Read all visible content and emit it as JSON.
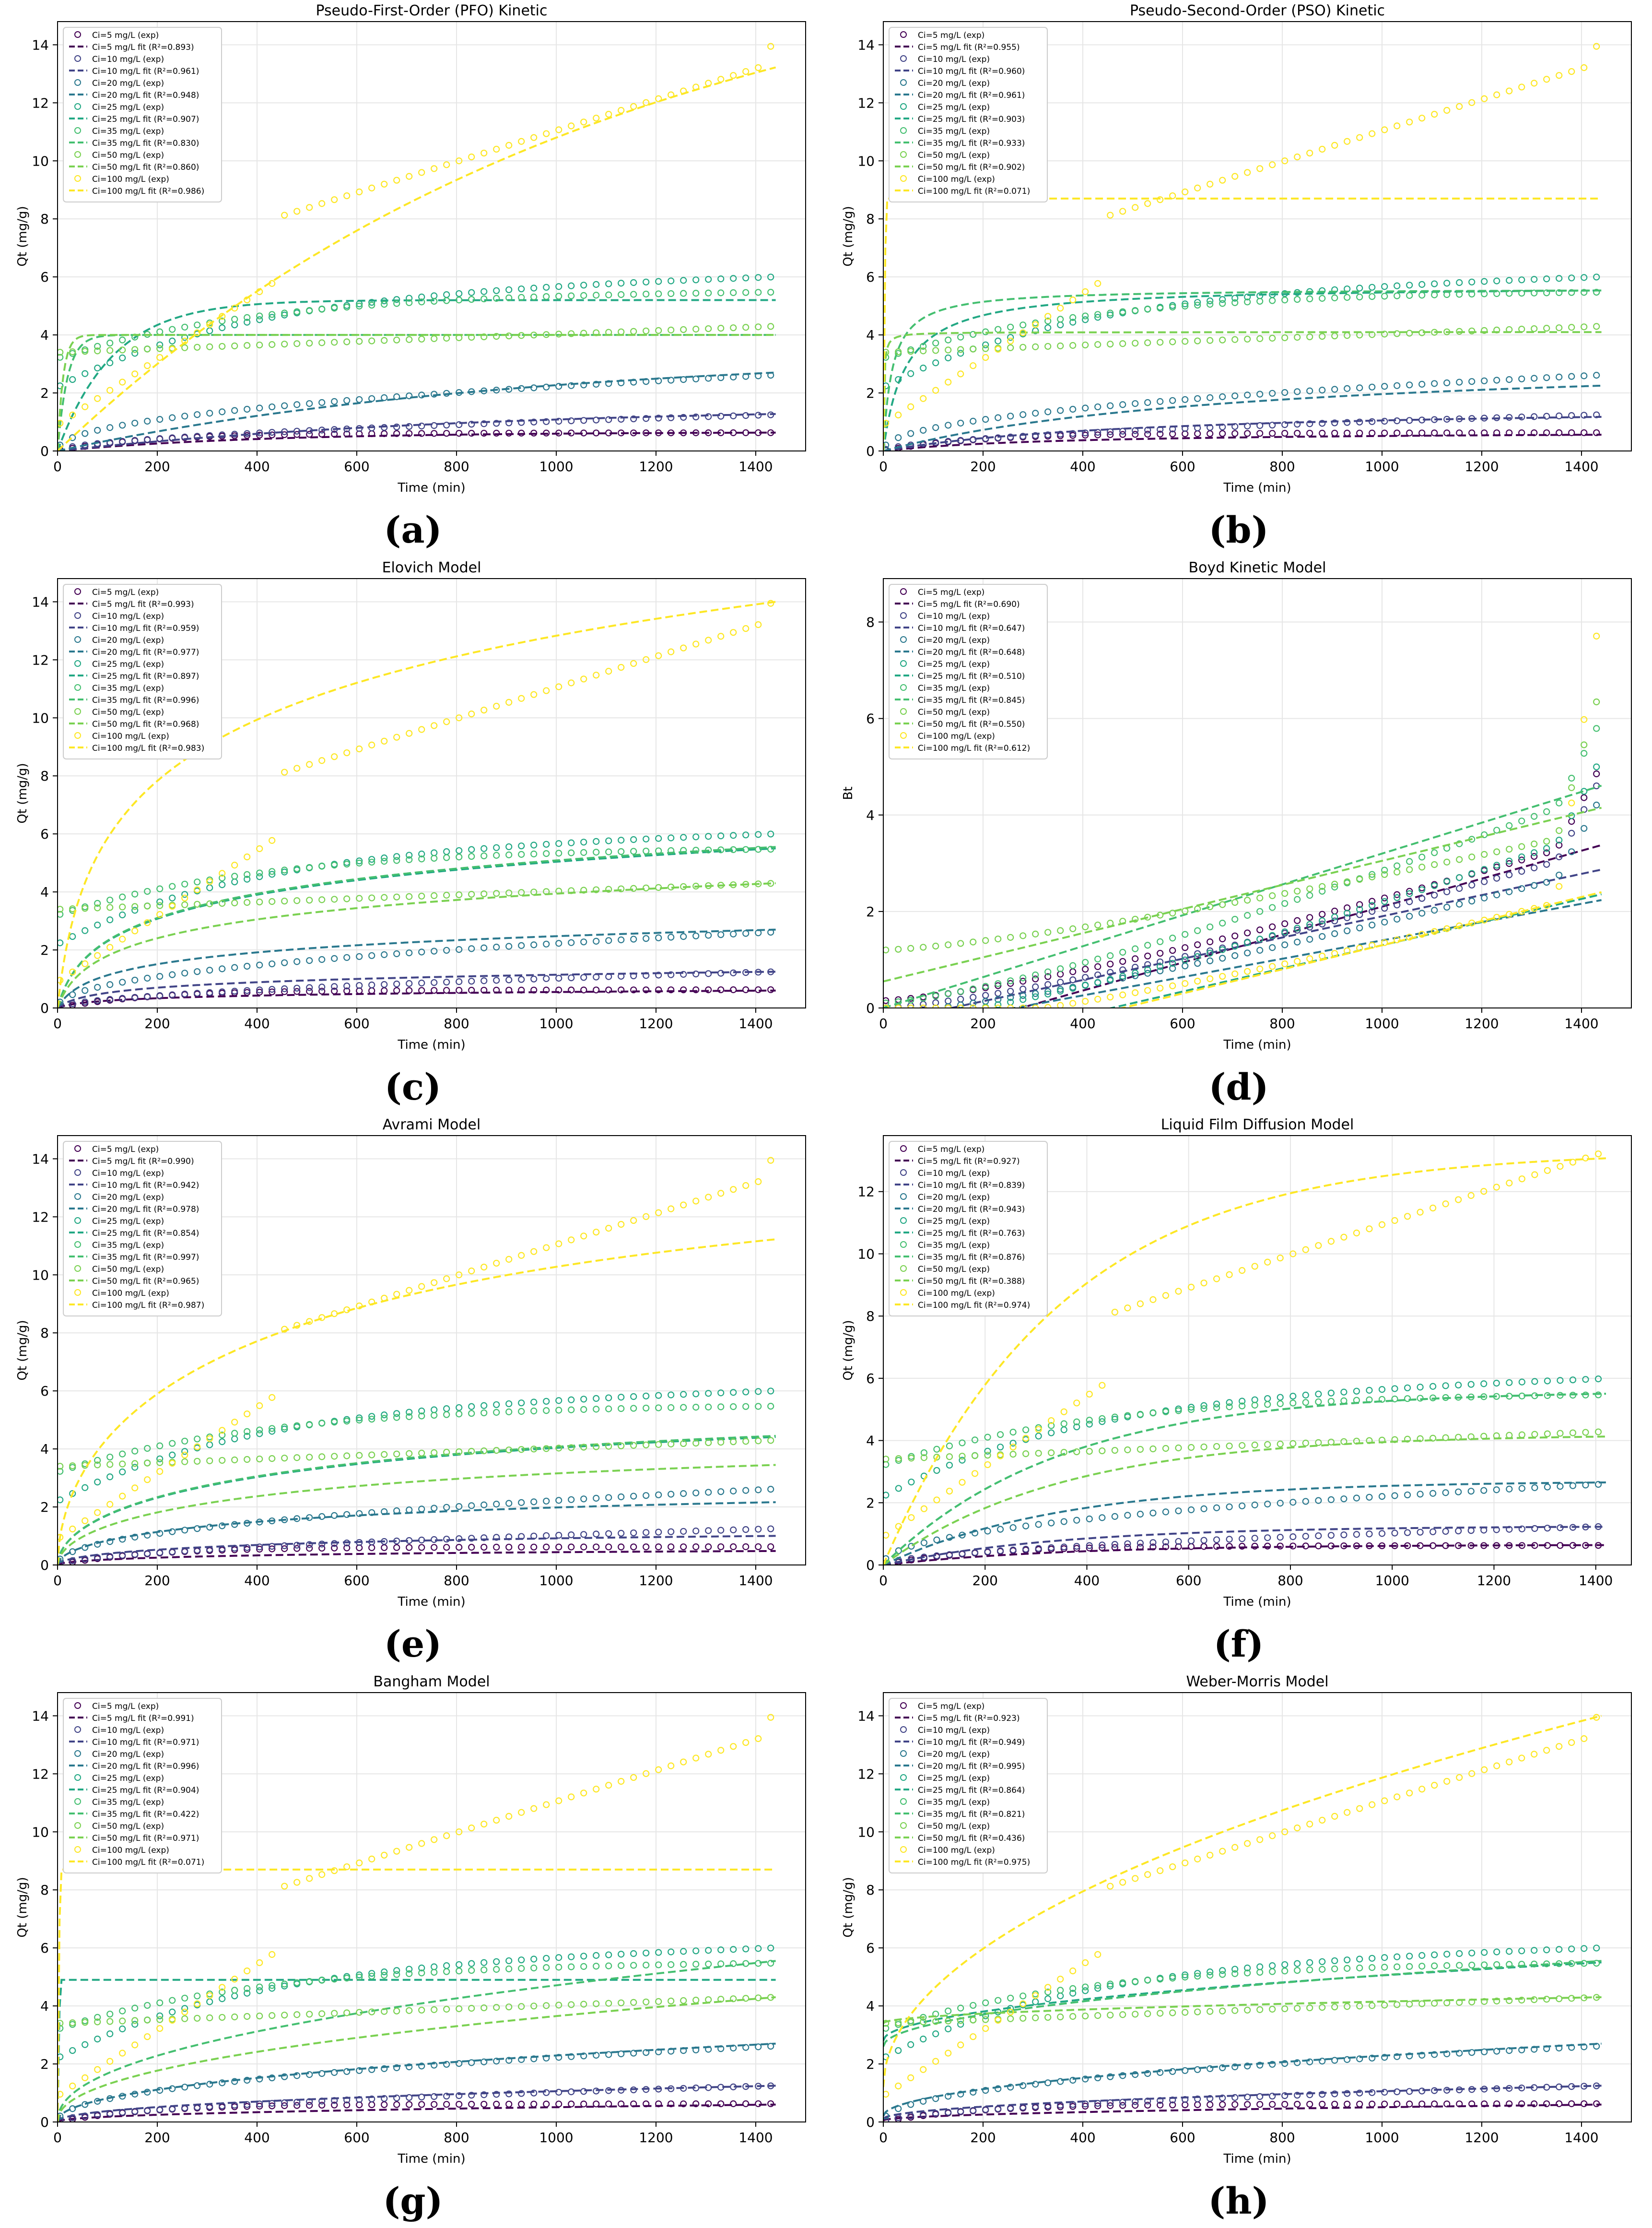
{
  "palette": {
    "5": "#440154",
    "10": "#414487",
    "20": "#2a788e",
    "25": "#22a884",
    "35": "#44bf70",
    "50": "#7ad151",
    "100": "#fde725"
  },
  "concs": [
    5,
    10,
    20,
    25,
    35,
    50,
    100
  ],
  "chart_data": [
    {
      "type": "scatter",
      "model": "pfo",
      "letter": "(a)",
      "title": "Pseudo-First-Order (PFO) Kinetic",
      "xlabel": "Time (min)",
      "ylabel": "Qt (mg/g)",
      "xlim": [
        0,
        1500
      ],
      "ylim": [
        0,
        14.8
      ],
      "xticks": [
        0,
        200,
        400,
        600,
        800,
        1000,
        1200,
        1400
      ],
      "yticks": [
        0,
        2,
        4,
        6,
        8,
        10,
        12,
        14
      ],
      "grid": true,
      "legend": "top-left",
      "r2": [
        "0.893",
        "0.961",
        "0.948",
        "0.907",
        "0.830",
        "0.860",
        "0.986"
      ]
    },
    {
      "type": "scatter",
      "model": "pso",
      "letter": "(b)",
      "title": "Pseudo-Second-Order (PSO) Kinetic",
      "xlabel": "Time (min)",
      "ylabel": "Qt (mg/g)",
      "xlim": [
        0,
        1500
      ],
      "ylim": [
        0,
        14.8
      ],
      "xticks": [
        0,
        200,
        400,
        600,
        800,
        1000,
        1200,
        1400
      ],
      "yticks": [
        0,
        2,
        4,
        6,
        8,
        10,
        12,
        14
      ],
      "grid": true,
      "legend": "top-left",
      "r2": [
        "0.955",
        "0.960",
        "0.961",
        "0.903",
        "0.933",
        "0.902",
        "0.071"
      ]
    },
    {
      "type": "scatter",
      "model": "elovich",
      "letter": "(c)",
      "title": "Elovich Model",
      "xlabel": "Time (min)",
      "ylabel": "Qt (mg/g)",
      "xlim": [
        0,
        1500
      ],
      "ylim": [
        0,
        14.8
      ],
      "xticks": [
        0,
        200,
        400,
        600,
        800,
        1000,
        1200,
        1400
      ],
      "yticks": [
        0,
        2,
        4,
        6,
        8,
        10,
        12,
        14
      ],
      "grid": true,
      "legend": "top-left",
      "r2": [
        "0.993",
        "0.959",
        "0.977",
        "0.897",
        "0.996",
        "0.968",
        "0.983"
      ]
    },
    {
      "type": "scatter",
      "model": "boyd",
      "letter": "(d)",
      "title": "Boyd Kinetic Model",
      "xlabel": "Time (min)",
      "ylabel": "Bt",
      "xlim": [
        0,
        1500
      ],
      "ylim": [
        0,
        8.9
      ],
      "xticks": [
        0,
        200,
        400,
        600,
        800,
        1000,
        1200,
        1400
      ],
      "yticks": [
        0,
        2,
        4,
        6,
        8
      ],
      "grid": true,
      "legend": "top-left",
      "r2": [
        "0.690",
        "0.647",
        "0.648",
        "0.510",
        "0.845",
        "0.550",
        "0.612"
      ]
    },
    {
      "type": "scatter",
      "model": "avrami",
      "letter": "(e)",
      "title": "Avrami Model",
      "xlabel": "Time (min)",
      "ylabel": "Qt (mg/g)",
      "xlim": [
        0,
        1500
      ],
      "ylim": [
        0,
        14.8
      ],
      "xticks": [
        0,
        200,
        400,
        600,
        800,
        1000,
        1200,
        1400
      ],
      "yticks": [
        0,
        2,
        4,
        6,
        8,
        10,
        12,
        14
      ],
      "grid": true,
      "legend": "top-left",
      "r2": [
        "0.990",
        "0.942",
        "0.978",
        "0.854",
        "0.997",
        "0.965",
        "0.987"
      ]
    },
    {
      "type": "scatter",
      "model": "lfd",
      "letter": "(f)",
      "title": "Liquid Film Diffusion Model",
      "xlabel": "Time (min)",
      "ylabel": "Qt (mg/g)",
      "xlim": [
        0,
        1470
      ],
      "ylim": [
        0,
        13.8
      ],
      "xticks": [
        0,
        200,
        400,
        600,
        800,
        1000,
        1200,
        1400
      ],
      "yticks": [
        0,
        2,
        4,
        6,
        8,
        10,
        12
      ],
      "grid": true,
      "legend": "top-left",
      "r2": [
        "0.927",
        "0.839",
        "0.943",
        "0.763",
        "0.876",
        "0.388",
        "0.974"
      ]
    },
    {
      "type": "scatter",
      "model": "bangham",
      "letter": "(g)",
      "title": "Bangham Model",
      "xlabel": "Time (min)",
      "ylabel": "Qt (mg/g)",
      "xlim": [
        0,
        1500
      ],
      "ylim": [
        0,
        14.8
      ],
      "xticks": [
        0,
        200,
        400,
        600,
        800,
        1000,
        1200,
        1400
      ],
      "yticks": [
        0,
        2,
        4,
        6,
        8,
        10,
        12,
        14
      ],
      "grid": true,
      "legend": "top-left",
      "r2": [
        "0.991",
        "0.971",
        "0.996",
        "0.904",
        "0.422",
        "0.971",
        "0.071"
      ]
    },
    {
      "type": "scatter",
      "model": "wm",
      "letter": "(h)",
      "title": "Weber-Morris Model",
      "xlabel": "Time (min)",
      "ylabel": "Qt (mg/g)",
      "xlim": [
        0,
        1500
      ],
      "ylim": [
        0,
        14.8
      ],
      "xticks": [
        0,
        200,
        400,
        600,
        800,
        1000,
        1200,
        1400
      ],
      "yticks": [
        0,
        2,
        4,
        6,
        8,
        10,
        12,
        14
      ],
      "grid": true,
      "legend": "top-left",
      "r2": [
        "0.923",
        "0.949",
        "0.995",
        "0.864",
        "0.821",
        "0.436",
        "0.975"
      ]
    }
  ]
}
